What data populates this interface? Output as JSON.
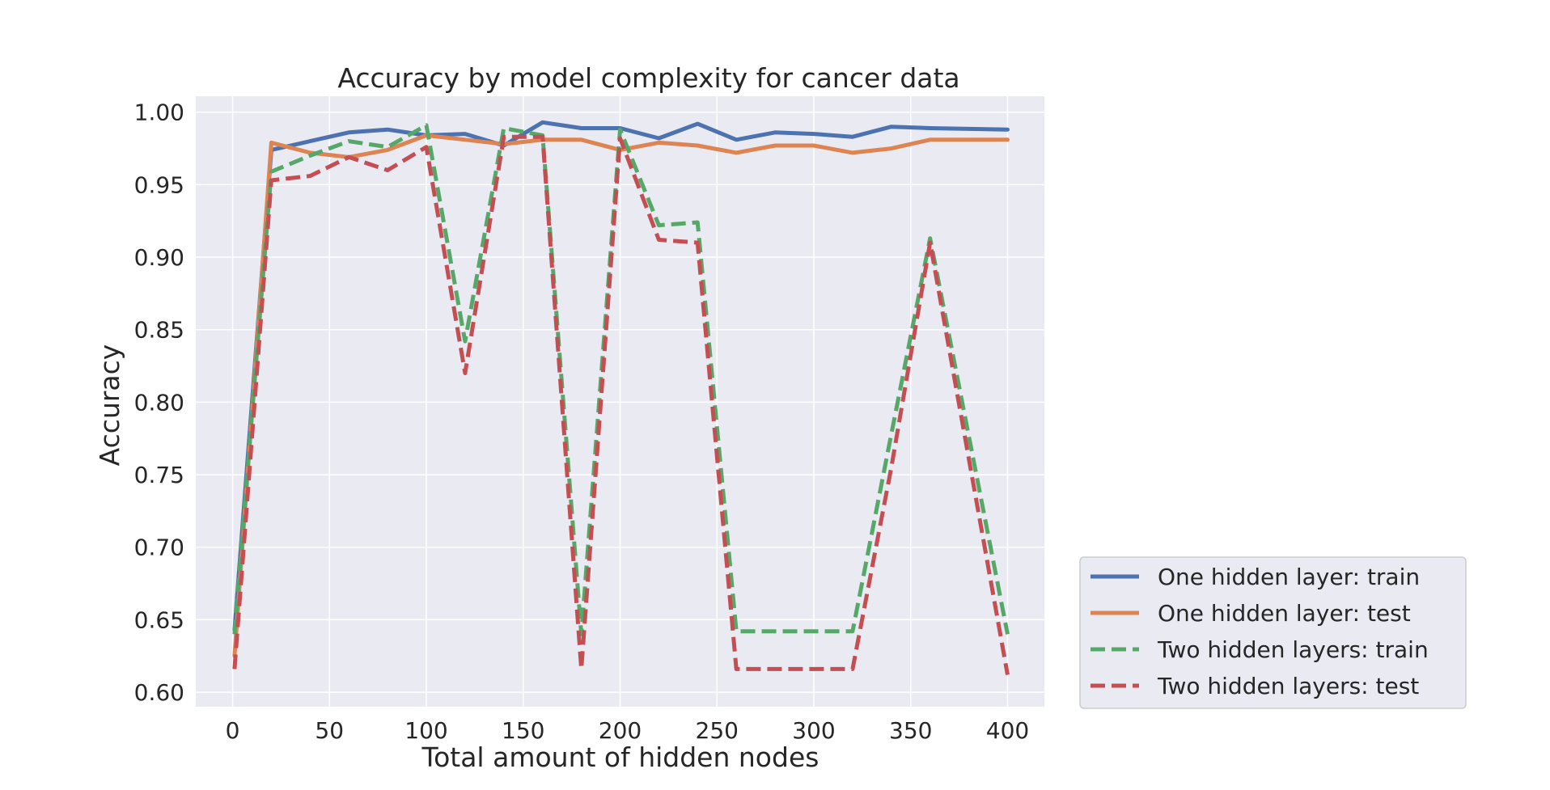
{
  "chart_data": {
    "type": "line",
    "title": "Accuracy by model complexity for cancer data",
    "xlabel": "Total amount of hidden nodes",
    "ylabel": "Accuracy",
    "xlim": [
      -19,
      419
    ],
    "ylim": [
      0.59,
      1.011
    ],
    "xticks": [
      0,
      50,
      100,
      150,
      200,
      250,
      300,
      350,
      400
    ],
    "xtick_labels": [
      "0",
      "50",
      "100",
      "150",
      "200",
      "250",
      "300",
      "350",
      "400"
    ],
    "yticks": [
      0.6,
      0.65,
      0.7,
      0.75,
      0.8,
      0.85,
      0.9,
      0.95,
      1.0
    ],
    "ytick_labels": [
      "0.60",
      "0.65",
      "0.70",
      "0.75",
      "0.80",
      "0.85",
      "0.90",
      "0.95",
      "1.00"
    ],
    "grid": true,
    "legend_position": "outside-bottom-right",
    "x": [
      1,
      20,
      40,
      60,
      80,
      100,
      120,
      140,
      160,
      180,
      200,
      220,
      240,
      260,
      280,
      300,
      320,
      340,
      360,
      400
    ],
    "series": [
      {
        "name": "One hidden layer: train",
        "color": "#4c72b0",
        "dash": "solid",
        "values": [
          0.643,
          0.974,
          0.98,
          0.986,
          0.988,
          0.984,
          0.985,
          0.977,
          0.993,
          0.989,
          0.989,
          0.982,
          0.992,
          0.981,
          0.986,
          0.985,
          0.983,
          0.99,
          0.989,
          0.988
        ]
      },
      {
        "name": "One hidden layer: test",
        "color": "#dd8452",
        "dash": "solid",
        "values": [
          0.625,
          0.979,
          0.972,
          0.969,
          0.974,
          0.984,
          0.981,
          0.978,
          0.981,
          0.981,
          0.974,
          0.979,
          0.977,
          0.972,
          0.977,
          0.977,
          0.972,
          0.975,
          0.981,
          0.981
        ]
      },
      {
        "name": "Two hidden layers: train",
        "color": "#55a868",
        "dash": "dashed",
        "values": [
          0.64,
          0.959,
          0.97,
          0.98,
          0.976,
          0.991,
          0.842,
          0.989,
          0.984,
          0.64,
          0.988,
          0.922,
          0.924,
          0.642,
          0.642,
          0.642,
          0.642,
          0.778,
          0.913,
          0.64
        ]
      },
      {
        "name": "Two hidden layers: test",
        "color": "#c44e52",
        "dash": "dashed",
        "values": [
          0.616,
          0.953,
          0.956,
          0.969,
          0.96,
          0.976,
          0.82,
          0.983,
          0.983,
          0.616,
          0.982,
          0.912,
          0.91,
          0.616,
          0.616,
          0.616,
          0.616,
          0.755,
          0.91,
          0.612
        ]
      }
    ]
  }
}
